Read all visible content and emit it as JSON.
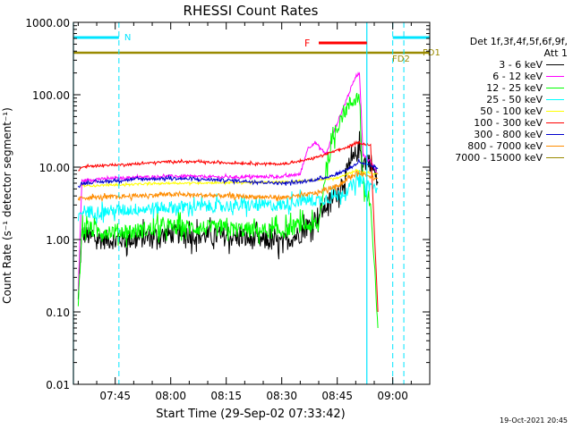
{
  "chart_data": {
    "type": "line",
    "title": "RHESSI Count Rates",
    "xlabel": "Start Time (29-Sep-02 07:33:42)",
    "ylabel": "Count Rate (s⁻¹ detector segment⁻¹)",
    "yscale": "log",
    "ylim": [
      0.01,
      1000
    ],
    "xlim": [
      "07:33:42",
      "09:10:00"
    ],
    "xticks": [
      "07:45",
      "08:00",
      "08:15",
      "08:30",
      "08:45",
      "09:00"
    ],
    "yticks": [
      "0.01",
      "0.10",
      "1.00",
      "10.00",
      "100.00",
      "1000.00"
    ],
    "grid": false,
    "legend_placement": "right",
    "series": [
      {
        "name": "3 - 6 keV",
        "color": "#000000",
        "x": [
          "07:35",
          "07:36",
          "07:40",
          "07:50",
          "08:00",
          "08:15",
          "08:30",
          "08:35",
          "08:40",
          "08:45",
          "08:48",
          "08:50",
          "08:51",
          "08:52",
          "08:54",
          "08:56"
        ],
        "values": [
          0.15,
          1.2,
          1.0,
          1.0,
          1.2,
          1.1,
          0.9,
          1.2,
          2.2,
          4.5,
          9,
          15,
          18,
          12,
          12,
          6
        ]
      },
      {
        "name": "6 - 12 keV",
        "color": "#ff00ff",
        "x": [
          "07:35",
          "07:36",
          "07:40",
          "07:50",
          "08:00",
          "08:15",
          "08:30",
          "08:35",
          "08:37",
          "08:39",
          "08:42",
          "08:44",
          "08:46",
          "08:48",
          "08:50",
          "08:51",
          "08:52",
          "08:54",
          "08:56"
        ],
        "values": [
          0.2,
          6.5,
          6.8,
          7.2,
          7.5,
          7.3,
          7.4,
          8,
          18,
          22,
          15,
          30,
          55,
          100,
          180,
          200,
          15,
          12,
          8
        ]
      },
      {
        "name": "12 - 25 keV",
        "color": "#00ff00",
        "x": [
          "07:35",
          "07:36",
          "07:40",
          "07:50",
          "08:00",
          "08:15",
          "08:30",
          "08:35",
          "08:40",
          "08:42",
          "08:44",
          "08:46",
          "08:48",
          "08:50",
          "08:51",
          "08:52",
          "08:54",
          "08:56"
        ],
        "values": [
          0.12,
          1.5,
          1.3,
          1.3,
          1.5,
          1.4,
          1.3,
          1.6,
          1.5,
          10,
          25,
          50,
          70,
          90,
          95,
          5,
          3,
          0.06
        ]
      },
      {
        "name": "25 - 50 keV",
        "color": "#00ffff",
        "x": [
          "07:35",
          "07:36",
          "07:40",
          "07:50",
          "08:00",
          "08:15",
          "08:30",
          "08:35",
          "08:40",
          "08:45",
          "08:48",
          "08:50",
          "08:51",
          "08:52",
          "08:54",
          "08:56"
        ],
        "values": [
          1.8,
          2.5,
          2.4,
          2.6,
          2.8,
          2.9,
          3.0,
          3.5,
          3.5,
          4.0,
          5.0,
          6.0,
          6.5,
          6.0,
          5.5,
          5.0
        ]
      },
      {
        "name": "50 - 100 keV",
        "color": "#ffff00",
        "x": [
          "07:36",
          "08:00",
          "08:30",
          "08:45",
          "08:50",
          "08:52",
          "08:56"
        ],
        "values": [
          5.5,
          6.0,
          6.2,
          7.0,
          9.0,
          8.5,
          8.0
        ]
      },
      {
        "name": "100 - 300 keV",
        "color": "#ff0000",
        "x": [
          "07:35",
          "07:36",
          "07:40",
          "07:50",
          "08:00",
          "08:15",
          "08:30",
          "08:35",
          "08:40",
          "08:45",
          "08:48",
          "08:50",
          "08:51",
          "08:52",
          "08:54",
          "08:56"
        ],
        "values": [
          9,
          10,
          10.5,
          11,
          12,
          11.5,
          11,
          12,
          14,
          17,
          19,
          21,
          22,
          21,
          20,
          0.1
        ]
      },
      {
        "name": "300 - 800 keV",
        "color": "#0000cd",
        "x": [
          "07:35",
          "07:36",
          "07:40",
          "07:50",
          "08:00",
          "08:15",
          "08:30",
          "08:35",
          "08:40",
          "08:45",
          "08:48",
          "08:50",
          "08:51",
          "08:52",
          "08:54",
          "08:56"
        ],
        "values": [
          5.5,
          6.0,
          6.2,
          6.8,
          7.0,
          6.6,
          6.0,
          6.2,
          6.8,
          8.0,
          9.5,
          11,
          12,
          11,
          10.5,
          9.5
        ]
      },
      {
        "name": "800 - 7000 keV",
        "color": "#ff8c00",
        "x": [
          "07:35",
          "07:36",
          "07:40",
          "07:50",
          "08:00",
          "08:15",
          "08:30",
          "08:35",
          "08:40",
          "08:45",
          "08:48",
          "08:50",
          "08:51",
          "08:52",
          "08:54",
          "08:56"
        ],
        "values": [
          3.5,
          3.8,
          3.8,
          4.0,
          4.2,
          4.0,
          3.8,
          4.0,
          4.5,
          5.5,
          7.0,
          8.0,
          8.5,
          8.0,
          7.5,
          7.0
        ]
      },
      {
        "name": "7000 - 15000 keV",
        "color": "#9a8a00",
        "x": [
          "07:33:42",
          "09:10"
        ],
        "values": [
          380,
          380
        ]
      }
    ],
    "legend_header": [
      "Det 1f,3f,4f,5f,6f,9f,",
      "Att 1"
    ],
    "annotations": {
      "night_label": "N",
      "flare_label": "F",
      "fd1_label": "FD1",
      "fd2_label": "FD2",
      "night_color": "#00e5ff",
      "flare_color": "#ff0000",
      "fd_color": "#9a8a00",
      "night_bars": [
        [
          "07:33:42",
          "07:46"
        ],
        [
          "09:00",
          "09:10"
        ]
      ],
      "night_dashes": [
        "07:46",
        "09:00"
      ],
      "flare_bar": [
        "08:40",
        "08:53"
      ],
      "fd1_dash": "09:03",
      "day_boundaries": [
        "07:33:42",
        "08:53"
      ]
    },
    "timestamp": "19-Oct-2021 20:45"
  }
}
